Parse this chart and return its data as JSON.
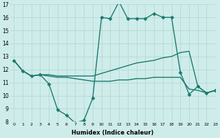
{
  "xlabel": "Humidex (Indice chaleur)",
  "bg_color": "#ceecea",
  "line_color": "#1a7a6e",
  "markersize": 2.5,
  "linewidth": 1.0,
  "xmin": -0.5,
  "xmax": 23,
  "ymin": 8,
  "ymax": 17,
  "xticks": [
    0,
    1,
    2,
    3,
    4,
    5,
    6,
    7,
    8,
    9,
    10,
    11,
    12,
    13,
    14,
    15,
    16,
    17,
    18,
    19,
    20,
    21,
    22,
    23
  ],
  "yticks": [
    8,
    9,
    10,
    11,
    12,
    13,
    14,
    15,
    16,
    17
  ],
  "grid_color": "#b0d4d0",
  "s1_x": [
    0,
    1,
    2,
    3,
    4,
    5,
    6,
    7,
    8,
    9,
    10,
    11,
    12,
    13,
    14,
    15,
    16,
    17,
    18,
    19,
    20,
    21,
    22,
    23
  ],
  "s1_y": [
    12.7,
    11.9,
    11.5,
    11.6,
    10.9,
    8.9,
    8.5,
    7.9,
    8.1,
    9.8,
    16.0,
    15.9,
    17.2,
    15.9,
    15.9,
    15.9,
    16.3,
    16.0,
    16.0,
    11.8,
    10.1,
    10.7,
    10.2,
    10.4
  ],
  "s2_x": [
    0,
    1,
    2,
    3,
    4,
    5,
    6,
    7,
    8,
    9,
    10,
    11,
    12,
    13,
    14,
    15,
    16,
    17,
    18,
    19,
    20,
    21,
    22,
    23
  ],
  "s2_y": [
    12.7,
    11.9,
    11.5,
    11.6,
    11.6,
    11.5,
    11.5,
    11.5,
    11.5,
    11.5,
    11.7,
    11.9,
    12.1,
    12.3,
    12.5,
    12.6,
    12.7,
    12.9,
    13.0,
    13.3,
    13.4,
    10.7,
    10.2,
    10.4
  ],
  "s3_x": [
    0,
    1,
    2,
    3,
    4,
    5,
    6,
    7,
    8,
    9,
    10,
    11,
    12,
    13,
    14,
    15,
    16,
    17,
    18,
    19,
    20,
    21,
    22,
    23
  ],
  "s3_y": [
    12.7,
    11.9,
    11.5,
    11.6,
    11.5,
    11.4,
    11.4,
    11.3,
    11.2,
    11.1,
    11.1,
    11.1,
    11.2,
    11.2,
    11.3,
    11.3,
    11.4,
    11.4,
    11.4,
    11.4,
    10.5,
    10.4,
    10.2,
    10.4
  ]
}
